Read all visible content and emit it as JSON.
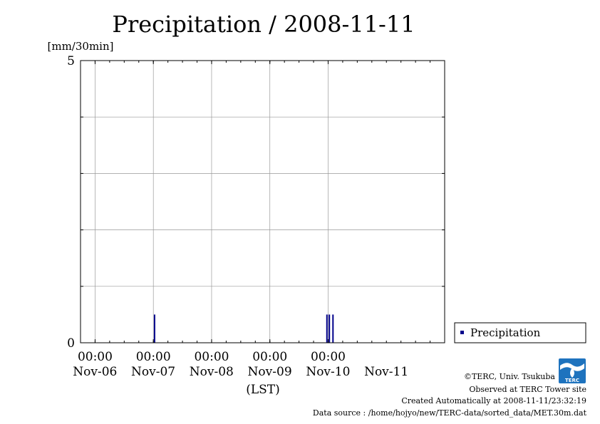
{
  "chart_data": {
    "type": "bar",
    "title": "Precipitation / 2008-11-11",
    "ylabel": "[mm/30min]",
    "xlabel": "(LST)",
    "ylim": [
      0,
      5
    ],
    "y_ticks": [
      "0",
      "5"
    ],
    "x_range": [
      "2008-11-05T18:00",
      "2008-11-11T24:00"
    ],
    "x_time_ticks": [
      "00:00",
      "00:00",
      "00:00",
      "00:00",
      "00:00"
    ],
    "x_date_labels": [
      "Nov-06",
      "Nov-07",
      "Nov-08",
      "Nov-09",
      "Nov-10",
      "Nov-11"
    ],
    "grid": true,
    "legend_position": "bottom-right",
    "series": [
      {
        "name": "Precipitation",
        "color": "#00008b",
        "points": [
          {
            "x": "2008-11-07T00:30",
            "y": 0.5
          },
          {
            "x": "2008-11-09T23:30",
            "y": 0.5
          },
          {
            "x": "2008-11-10T00:30",
            "y": 0.5
          },
          {
            "x": "2008-11-10T02:00",
            "y": 0.5
          }
        ]
      }
    ]
  },
  "footer": {
    "copyright": "©TERC, Univ. Tsukuba",
    "observed": "Observed at TERC Tower site",
    "created": "Created Automatically at 2008-11-11/23:32:19",
    "source": "Data source : /home/hojyo/new/TERC-data/sorted_data/MET.30m.dat",
    "logo_text": "TERC"
  }
}
